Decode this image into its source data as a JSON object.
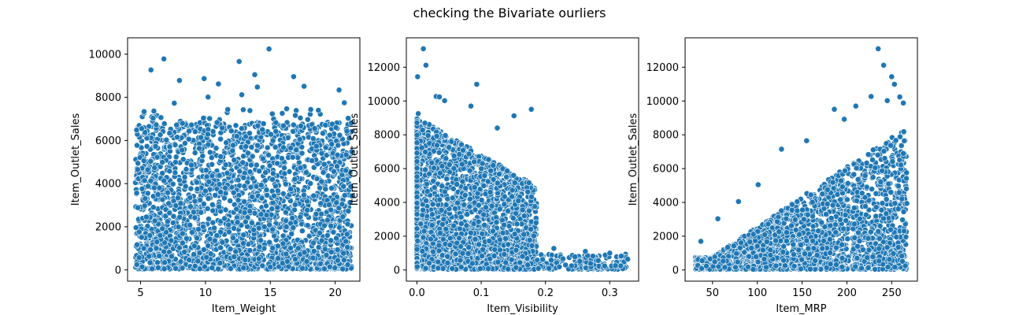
{
  "figure": {
    "suptitle": "checking the Bivariate ourliers"
  },
  "point_color": "#1f77b4",
  "point_edge": "#ffffff",
  "chart_data": [
    {
      "type": "scatter",
      "title": "",
      "xlabel": "Item_Weight",
      "ylabel": "Item_Outlet_Sales",
      "xlim": [
        4.0,
        21.9
      ],
      "ylim": [
        -520,
        10760
      ],
      "xticks": [
        5,
        10,
        15,
        20
      ],
      "xtick_labels": [
        "5",
        "10",
        "15",
        "20"
      ],
      "yticks": [
        0,
        2000,
        4000,
        6000,
        8000,
        10000
      ],
      "ytick_labels": [
        "0",
        "2000",
        "4000",
        "6000",
        "8000",
        "10000"
      ],
      "grid": false,
      "highlights": [
        {
          "x": 5.8,
          "y": 9270
        },
        {
          "x": 6.8,
          "y": 9780
        },
        {
          "x": 8.0,
          "y": 8780
        },
        {
          "x": 9.9,
          "y": 8870
        },
        {
          "x": 11.0,
          "y": 8620
        },
        {
          "x": 12.6,
          "y": 9660
        },
        {
          "x": 13.8,
          "y": 9050
        },
        {
          "x": 14.9,
          "y": 10240
        },
        {
          "x": 16.8,
          "y": 8960
        },
        {
          "x": 17.6,
          "y": 8510
        },
        {
          "x": 20.3,
          "y": 8340
        },
        {
          "x": 14.0,
          "y": 8480
        },
        {
          "x": 12.8,
          "y": 8120
        },
        {
          "x": 20.7,
          "y": 7750
        },
        {
          "x": 21.0,
          "y": 7030
        },
        {
          "x": 10.2,
          "y": 8010
        },
        {
          "x": 7.6,
          "y": 7730
        },
        {
          "x": 18.7,
          "y": 7400
        }
      ]
    },
    {
      "type": "scatter",
      "title": "",
      "xlabel": "Item_Visibility",
      "ylabel": "Item_Outlet_Sales",
      "xlim": [
        -0.0165,
        0.345
      ],
      "ylim": [
        -660,
        13740
      ],
      "xticks": [
        0.0,
        0.1,
        0.2,
        0.3
      ],
      "xtick_labels": [
        "0.0",
        "0.1",
        "0.2",
        "0.3"
      ],
      "yticks": [
        0,
        2000,
        4000,
        6000,
        8000,
        10000,
        12000
      ],
      "ytick_labels": [
        "0",
        "2000",
        "4000",
        "6000",
        "8000",
        "10000",
        "12000"
      ],
      "grid": false,
      "highlights": [
        {
          "x": 0.01,
          "y": 13090
        },
        {
          "x": 0.014,
          "y": 12120
        },
        {
          "x": 0.001,
          "y": 11440
        },
        {
          "x": 0.093,
          "y": 10990
        },
        {
          "x": 0.03,
          "y": 10270
        },
        {
          "x": 0.035,
          "y": 10240
        },
        {
          "x": 0.043,
          "y": 10020
        },
        {
          "x": 0.178,
          "y": 9510
        },
        {
          "x": 0.151,
          "y": 9120
        },
        {
          "x": 0.084,
          "y": 9700
        },
        {
          "x": 0.002,
          "y": 9250
        },
        {
          "x": 0.125,
          "y": 8400
        },
        {
          "x": 0.262,
          "y": 1100
        },
        {
          "x": 0.3,
          "y": 1000
        },
        {
          "x": 0.318,
          "y": 820
        },
        {
          "x": 0.328,
          "y": 640
        },
        {
          "x": 0.213,
          "y": 1280
        },
        {
          "x": 0.246,
          "y": 780
        },
        {
          "x": 0.282,
          "y": 560
        },
        {
          "x": 0.309,
          "y": 260
        }
      ]
    },
    {
      "type": "scatter",
      "title": "",
      "xlabel": "Item_MRP",
      "ylabel": "Item_Outlet_Sales",
      "xlim": [
        19.4,
        278.7
      ],
      "ylim": [
        -660,
        13740
      ],
      "xticks": [
        50,
        100,
        150,
        200,
        250
      ],
      "xtick_labels": [
        "50",
        "100",
        "150",
        "200",
        "250"
      ],
      "yticks": [
        0,
        2000,
        4000,
        6000,
        8000,
        10000,
        12000
      ],
      "ytick_labels": [
        "0",
        "2000",
        "4000",
        "6000",
        "8000",
        "10000",
        "12000"
      ],
      "grid": false,
      "highlights": [
        {
          "x": 234.9,
          "y": 13090
        },
        {
          "x": 241.0,
          "y": 12120
        },
        {
          "x": 250.0,
          "y": 11440
        },
        {
          "x": 253.0,
          "y": 10990
        },
        {
          "x": 227.0,
          "y": 10270
        },
        {
          "x": 259.0,
          "y": 10240
        },
        {
          "x": 245.0,
          "y": 10020
        },
        {
          "x": 263.0,
          "y": 9880
        },
        {
          "x": 210.0,
          "y": 9700
        },
        {
          "x": 186.0,
          "y": 9510
        },
        {
          "x": 197.0,
          "y": 8920
        },
        {
          "x": 127.0,
          "y": 7150
        },
        {
          "x": 155.0,
          "y": 7650
        },
        {
          "x": 79.0,
          "y": 4050
        },
        {
          "x": 101.0,
          "y": 5050
        },
        {
          "x": 56.0,
          "y": 3030
        },
        {
          "x": 37.0,
          "y": 1700
        }
      ]
    }
  ]
}
